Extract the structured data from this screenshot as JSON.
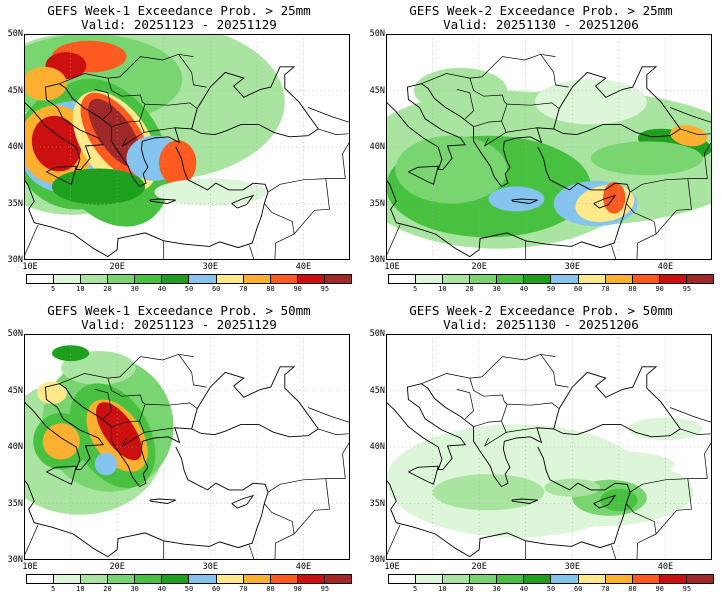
{
  "panels": [
    {
      "title_line1": "GEFS Week-1 Exceedance Prob. > 25mm",
      "title_line2": "Valid: 20251123 - 20251129"
    },
    {
      "title_line1": "GEFS Week-2 Exceedance Prob. > 25mm",
      "title_line2": "Valid: 20251130 - 20251206"
    },
    {
      "title_line1": "GEFS Week-1 Exceedance Prob. > 50mm",
      "title_line2": "Valid: 20251123 - 20251129"
    },
    {
      "title_line1": "GEFS Week-2 Exceedance Prob. > 50mm",
      "title_line2": "Valid: 20251130 - 20251206"
    }
  ],
  "lat_labels": [
    "50N",
    "45N",
    "40N",
    "35N",
    "30N"
  ],
  "lon_labels": [
    "10E",
    "20E",
    "30E",
    "40E"
  ],
  "colorbar": {
    "ticks": [
      "5",
      "10",
      "20",
      "30",
      "40",
      "50",
      "60",
      "70",
      "80",
      "90",
      "95"
    ],
    "colors": [
      "#ffffff",
      "#ddf5d8",
      "#a9e5a0",
      "#78d570",
      "#48c040",
      "#1ea01e",
      "#85c4ee",
      "#ffe98a",
      "#ffb030",
      "#ff5a20",
      "#cc1010",
      "#a02828"
    ]
  }
}
